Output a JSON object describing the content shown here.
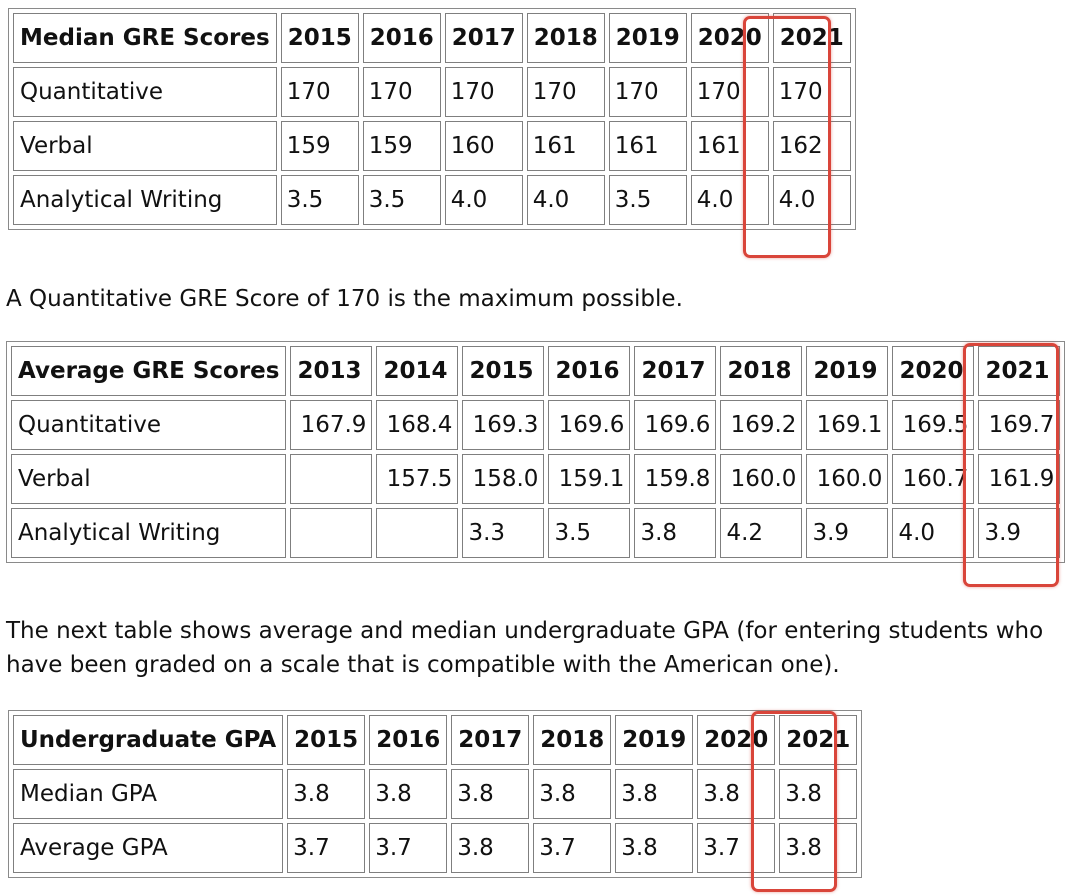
{
  "colors": {
    "highlight": "#d9453a"
  },
  "table1": {
    "header": [
      "Median GRE Scores",
      "2015",
      "2016",
      "2017",
      "2018",
      "2019",
      "2020",
      "2021"
    ],
    "rows": [
      [
        "Quantitative",
        "170",
        "170",
        "170",
        "170",
        "170",
        "170",
        "170"
      ],
      [
        "Verbal",
        "159",
        "159",
        "160",
        "161",
        "161",
        "161",
        "162"
      ],
      [
        "Analytical Writing",
        "3.5",
        "3.5",
        "4.0",
        "4.0",
        "3.5",
        "4.0",
        "4.0"
      ]
    ]
  },
  "note1": "A Quantitative GRE Score of 170 is the maximum possible.",
  "table2": {
    "header": [
      "Average GRE Scores",
      "2013",
      "2014",
      "2015",
      "2016",
      "2017",
      "2018",
      "2019",
      "2020",
      "2021"
    ],
    "rows": [
      [
        "Quantitative",
        "167.9",
        "168.4",
        "169.3",
        "169.6",
        "169.6",
        "169.2",
        "169.1",
        "169.5",
        "169.7"
      ],
      [
        "Verbal",
        "",
        "157.5",
        "158.0",
        "159.1",
        "159.8",
        "160.0",
        "160.0",
        "160.7",
        "161.9"
      ],
      [
        "Analytical Writing",
        "",
        "",
        "3.3",
        "3.5",
        "3.8",
        "4.2",
        "3.9",
        "4.0",
        "3.9"
      ]
    ]
  },
  "note2": "The next table shows average and median undergraduate GPA (for entering students who have been graded on a scale that is compatible with the American one).",
  "table3": {
    "header": [
      "Undergraduate GPA",
      "2015",
      "2016",
      "2017",
      "2018",
      "2019",
      "2020",
      "2021"
    ],
    "rows": [
      [
        "Median GPA",
        "3.8",
        "3.8",
        "3.8",
        "3.8",
        "3.8",
        "3.8",
        "3.8"
      ],
      [
        "Average GPA",
        "3.7",
        "3.7",
        "3.8",
        "3.7",
        "3.8",
        "3.7",
        "3.8"
      ]
    ]
  }
}
